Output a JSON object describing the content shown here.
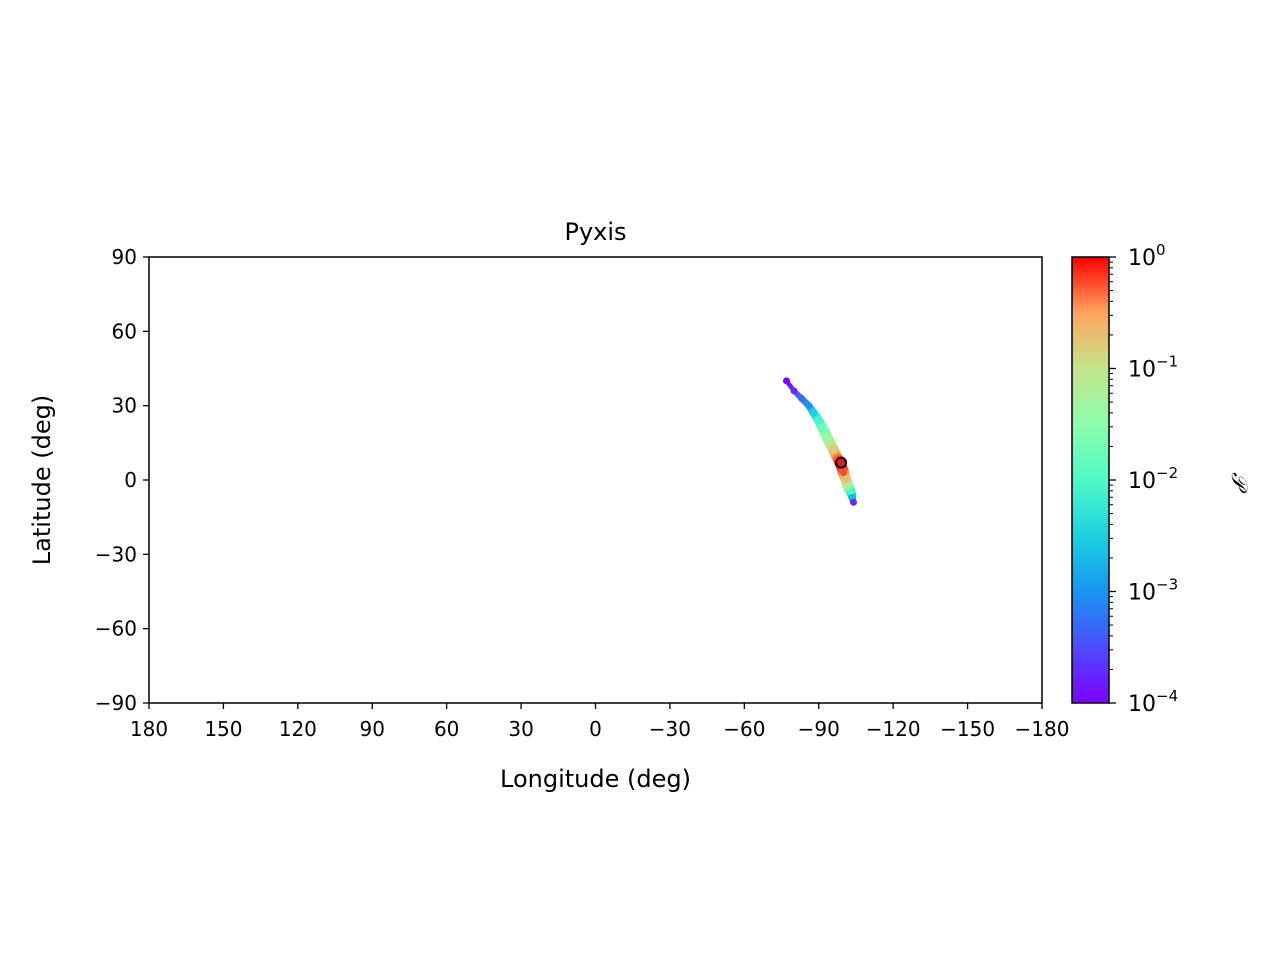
{
  "chart_data": {
    "type": "heatmap",
    "title": "Pyxis",
    "xlabel": "Longitude (deg)",
    "ylabel": "Latitude (deg)",
    "xlim": [
      180,
      -180
    ],
    "ylim": [
      -90,
      90
    ],
    "x_ticks": [
      180,
      150,
      120,
      90,
      60,
      30,
      0,
      -30,
      -60,
      -90,
      -120,
      -150,
      -180
    ],
    "x_tick_labels": [
      "180",
      "150",
      "120",
      "90",
      "60",
      "30",
      "0",
      "−30",
      "−60",
      "−90",
      "−120",
      "−150",
      "−180"
    ],
    "y_ticks": [
      90,
      60,
      30,
      0,
      -30,
      -60,
      -90
    ],
    "y_tick_labels": [
      "90",
      "60",
      "30",
      "0",
      "−30",
      "−60",
      "−90"
    ],
    "grid": false,
    "colormap": "rainbow",
    "colorbar": {
      "label": "𝒫",
      "scale": "log",
      "range": [
        0.0001,
        1
      ],
      "major_ticks": [
        {
          "value": 1,
          "base": "10",
          "exp": "0"
        },
        {
          "value": 0.1,
          "base": "10",
          "exp": "−1"
        },
        {
          "value": 0.01,
          "base": "10",
          "exp": "−2"
        },
        {
          "value": 0.001,
          "base": "10",
          "exp": "−3"
        },
        {
          "value": 0.0001,
          "base": "10",
          "exp": "−4"
        }
      ]
    },
    "track": [
      {
        "lon": -77,
        "lat": 40,
        "p": 0.0001
      },
      {
        "lon": -80,
        "lat": 36,
        "p": 0.0002
      },
      {
        "lon": -83,
        "lat": 33,
        "p": 0.0005
      },
      {
        "lon": -86,
        "lat": 30,
        "p": 0.001
      },
      {
        "lon": -88,
        "lat": 27,
        "p": 0.003
      },
      {
        "lon": -90,
        "lat": 24,
        "p": 0.008
      },
      {
        "lon": -92,
        "lat": 20,
        "p": 0.02
      },
      {
        "lon": -94,
        "lat": 16,
        "p": 0.05
      },
      {
        "lon": -96,
        "lat": 12,
        "p": 0.15
      },
      {
        "lon": -98,
        "lat": 8,
        "p": 0.5
      },
      {
        "lon": -99,
        "lat": 6,
        "p": 1
      },
      {
        "lon": -100,
        "lat": 3,
        "p": 0.6
      },
      {
        "lon": -101,
        "lat": 0,
        "p": 0.2
      },
      {
        "lon": -102,
        "lat": -3,
        "p": 0.05
      },
      {
        "lon": -103,
        "lat": -5,
        "p": 0.01
      },
      {
        "lon": -103.5,
        "lat": -7,
        "p": 0.002
      },
      {
        "lon": -104,
        "lat": -9,
        "p": 0.0002
      }
    ],
    "marker": {
      "lon": -99,
      "lat": 7,
      "color": "#e41a1c"
    }
  }
}
